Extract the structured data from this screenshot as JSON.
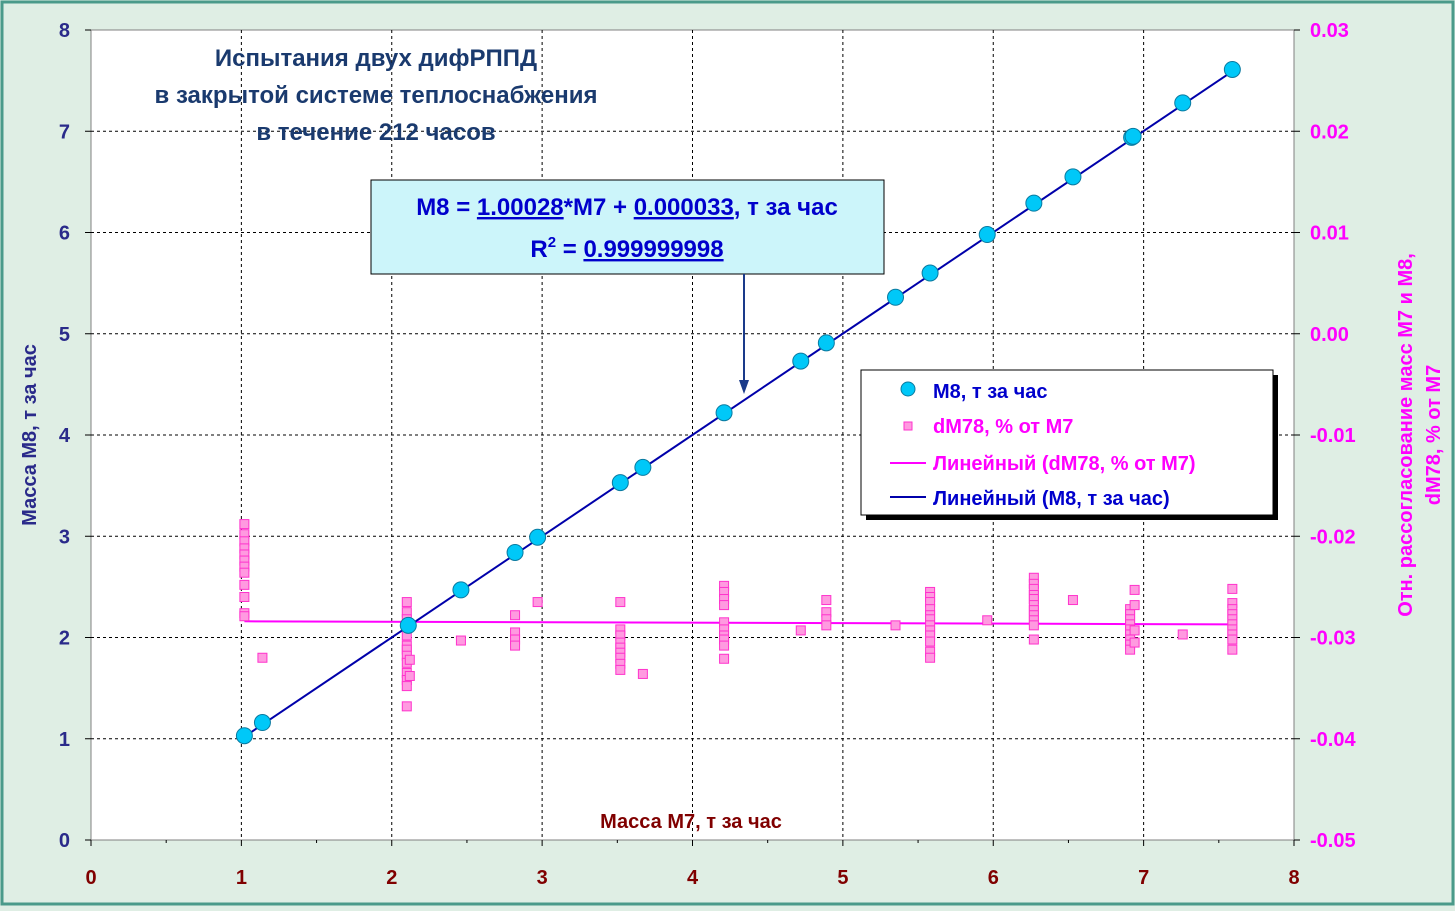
{
  "colors": {
    "background": "#dfeee4",
    "frame": "#4a9a8a",
    "left_axis": "#2a2a8a",
    "right_axis": "#ff00ff",
    "x_axis": "#800000",
    "title": "#1a3a6e",
    "m8_series": "#00c8f8",
    "dm78_series": "#ff66cc",
    "trend_m8": "#0000aa",
    "trend_dm78": "#ff00ff",
    "annotation_fill": "#ccf5fa",
    "annotation_text": "#0000cc"
  },
  "title": {
    "line1": "Испытания двух дифРППД",
    "line2": "в закрытой системе теплоснабжения",
    "line3": "в течение 212 часов"
  },
  "annotation": {
    "eq_prefix": "M8 = ",
    "eq_slope": "1.00028",
    "eq_mid": "*M7 + ",
    "eq_intercept": "0.000033",
    "eq_suffix": ", т за час",
    "r2_prefix": "R",
    "r2_sup": "2",
    "r2_eq": " = ",
    "r2_value": "0.999999998"
  },
  "legend": {
    "items": [
      {
        "label": "M8, т за час"
      },
      {
        "label": "dM78, % от M7"
      },
      {
        "label": "Линейный (dM78, % от M7)"
      },
      {
        "label": "Линейный (M8, т за час)"
      }
    ]
  },
  "axes": {
    "xlabel": "Масса М7, т за час",
    "ylabel_left": "Масса М8, т за час",
    "ylabel_right_line1": "Отн. рассогласование масс М7 и М8,",
    "ylabel_right_line2": "dM78, % от М7",
    "x_ticks": [
      "0",
      "1",
      "2",
      "3",
      "4",
      "5",
      "6",
      "7",
      "8"
    ],
    "y_left_ticks": [
      "0",
      "1",
      "2",
      "3",
      "4",
      "5",
      "6",
      "7",
      "8"
    ],
    "y_right_ticks": [
      "-0.05",
      "-0.04",
      "-0.03",
      "-0.02",
      "-0.01",
      "0.00",
      "0.01",
      "0.02",
      "0.03"
    ]
  },
  "chart_data": {
    "type": "scatter",
    "xlim": [
      0,
      8
    ],
    "ylim_left": [
      0,
      8
    ],
    "ylim_right": [
      -0.05,
      0.03
    ],
    "grid": true,
    "legend_position": "right",
    "series": [
      {
        "name": "M8, т за час",
        "axis": "left",
        "marker": "circle",
        "points": [
          [
            1.02,
            1.03
          ],
          [
            1.14,
            1.16
          ],
          [
            2.11,
            2.12
          ],
          [
            2.46,
            2.47
          ],
          [
            2.82,
            2.84
          ],
          [
            2.97,
            2.99
          ],
          [
            3.52,
            3.53
          ],
          [
            3.67,
            3.68
          ],
          [
            4.21,
            4.22
          ],
          [
            4.72,
            4.73
          ],
          [
            4.89,
            4.91
          ],
          [
            5.35,
            5.36
          ],
          [
            5.58,
            5.6
          ],
          [
            5.96,
            5.98
          ],
          [
            6.27,
            6.29
          ],
          [
            6.53,
            6.55
          ],
          [
            6.92,
            6.94
          ],
          [
            6.93,
            6.95
          ],
          [
            7.26,
            7.28
          ],
          [
            7.59,
            7.61
          ]
        ]
      },
      {
        "name": "dM78, % от M7",
        "axis": "right",
        "marker": "square",
        "points": [
          [
            1.02,
            -0.0188
          ],
          [
            1.02,
            -0.0198
          ],
          [
            1.02,
            -0.0205
          ],
          [
            1.02,
            -0.0212
          ],
          [
            1.02,
            -0.0218
          ],
          [
            1.02,
            -0.0224
          ],
          [
            1.02,
            -0.023
          ],
          [
            1.02,
            -0.0236
          ],
          [
            1.02,
            -0.0248
          ],
          [
            1.02,
            -0.026
          ],
          [
            1.02,
            -0.0276
          ],
          [
            1.02,
            -0.0279
          ],
          [
            1.14,
            -0.032
          ],
          [
            2.1,
            -0.0265
          ],
          [
            2.1,
            -0.0275
          ],
          [
            2.1,
            -0.0282
          ],
          [
            2.1,
            -0.029
          ],
          [
            2.1,
            -0.0298
          ],
          [
            2.1,
            -0.0308
          ],
          [
            2.1,
            -0.0312
          ],
          [
            2.1,
            -0.0318
          ],
          [
            2.1,
            -0.0325
          ],
          [
            2.1,
            -0.0335
          ],
          [
            2.1,
            -0.0342
          ],
          [
            2.1,
            -0.0348
          ],
          [
            2.1,
            -0.0368
          ],
          [
            2.12,
            -0.0288
          ],
          [
            2.12,
            -0.0322
          ],
          [
            2.12,
            -0.0338
          ],
          [
            2.46,
            -0.0303
          ],
          [
            2.82,
            -0.0278
          ],
          [
            2.82,
            -0.0295
          ],
          [
            2.82,
            -0.0302
          ],
          [
            2.82,
            -0.0308
          ],
          [
            2.97,
            -0.0265
          ],
          [
            3.52,
            -0.0265
          ],
          [
            3.52,
            -0.0292
          ],
          [
            3.52,
            -0.0298
          ],
          [
            3.52,
            -0.0305
          ],
          [
            3.52,
            -0.031
          ],
          [
            3.52,
            -0.0315
          ],
          [
            3.52,
            -0.032
          ],
          [
            3.52,
            -0.0326
          ],
          [
            3.52,
            -0.0332
          ],
          [
            3.67,
            -0.0336
          ],
          [
            4.21,
            -0.0249
          ],
          [
            4.21,
            -0.0255
          ],
          [
            4.21,
            -0.0262
          ],
          [
            4.21,
            -0.0268
          ],
          [
            4.21,
            -0.0285
          ],
          [
            4.21,
            -0.0292
          ],
          [
            4.21,
            -0.0298
          ],
          [
            4.21,
            -0.0302
          ],
          [
            4.21,
            -0.0308
          ],
          [
            4.21,
            -0.0321
          ],
          [
            4.72,
            -0.0293
          ],
          [
            4.89,
            -0.0263
          ],
          [
            4.89,
            -0.0275
          ],
          [
            4.89,
            -0.0282
          ],
          [
            4.89,
            -0.0288
          ],
          [
            5.35,
            -0.0288
          ],
          [
            5.58,
            -0.0255
          ],
          [
            5.58,
            -0.026
          ],
          [
            5.58,
            -0.0265
          ],
          [
            5.58,
            -0.0272
          ],
          [
            5.58,
            -0.0278
          ],
          [
            5.58,
            -0.0282
          ],
          [
            5.58,
            -0.0288
          ],
          [
            5.58,
            -0.0293
          ],
          [
            5.58,
            -0.0298
          ],
          [
            5.58,
            -0.0304
          ],
          [
            5.58,
            -0.0314
          ],
          [
            5.58,
            -0.032
          ],
          [
            5.96,
            -0.0283
          ],
          [
            6.27,
            -0.0241
          ],
          [
            6.27,
            -0.0247
          ],
          [
            6.27,
            -0.0252
          ],
          [
            6.27,
            -0.0258
          ],
          [
            6.27,
            -0.0262
          ],
          [
            6.27,
            -0.0268
          ],
          [
            6.27,
            -0.0273
          ],
          [
            6.27,
            -0.0278
          ],
          [
            6.27,
            -0.0283
          ],
          [
            6.27,
            -0.0288
          ],
          [
            6.27,
            -0.0302
          ],
          [
            6.53,
            -0.0263
          ],
          [
            6.91,
            -0.0272
          ],
          [
            6.91,
            -0.0277
          ],
          [
            6.91,
            -0.0282
          ],
          [
            6.91,
            -0.0287
          ],
          [
            6.91,
            -0.0292
          ],
          [
            6.91,
            -0.0297
          ],
          [
            6.91,
            -0.0302
          ],
          [
            6.91,
            -0.0307
          ],
          [
            6.91,
            -0.0312
          ],
          [
            6.94,
            -0.0253
          ],
          [
            6.94,
            -0.0268
          ],
          [
            6.94,
            -0.0293
          ],
          [
            6.94,
            -0.0305
          ],
          [
            7.26,
            -0.0297
          ],
          [
            7.59,
            -0.0252
          ],
          [
            7.59,
            -0.0266
          ],
          [
            7.59,
            -0.0272
          ],
          [
            7.59,
            -0.0277
          ],
          [
            7.59,
            -0.0282
          ],
          [
            7.59,
            -0.0287
          ],
          [
            7.59,
            -0.0292
          ],
          [
            7.59,
            -0.0297
          ],
          [
            7.59,
            -0.0302
          ],
          [
            7.59,
            -0.0312
          ]
        ]
      }
    ],
    "trendlines": [
      {
        "name": "Линейный (M8, т за час)",
        "axis": "left",
        "slope": 1.00028,
        "intercept": 3.3e-05,
        "x_range": [
          1.02,
          7.59
        ]
      },
      {
        "name": "Линейный (dM78, % от M7)",
        "axis": "right",
        "x_range": [
          1.02,
          7.59
        ],
        "y_range": [
          -0.0284,
          -0.0287
        ]
      }
    ]
  }
}
